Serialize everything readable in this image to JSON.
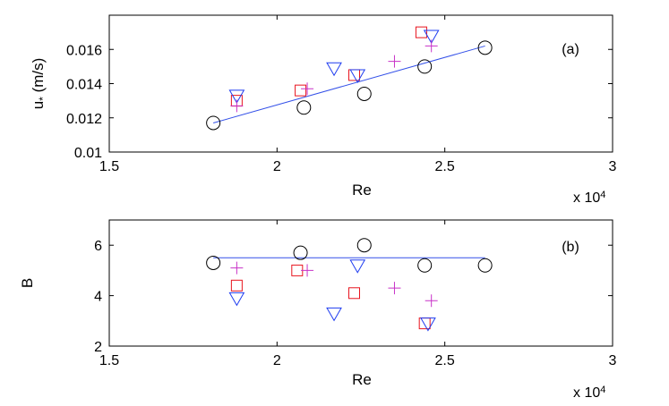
{
  "chart_data": [
    {
      "type": "scatter",
      "panel_label": "(a)",
      "xlabel": "Re",
      "ylabel": "u* (m/s)",
      "ylabel_main": "u",
      "ylabel_sub": "*",
      "ylabel_unit": " (m/s)",
      "xlim": [
        15000,
        30000
      ],
      "ylim": [
        0.01,
        0.018
      ],
      "x_ticks": [
        15000,
        20000,
        25000,
        30000
      ],
      "x_tick_labels": [
        "1.5",
        "2",
        "2.5",
        "3"
      ],
      "y_ticks": [
        0.01,
        0.012,
        0.014,
        0.016
      ],
      "y_tick_labels": [
        "0.01",
        "0.012",
        "0.014",
        "0.016"
      ],
      "x_multiplier_base": "x 10",
      "x_multiplier_exp": "4",
      "grid": false,
      "series": [
        {
          "marker": "circle",
          "color": "#000000",
          "points": [
            [
              18100,
              0.0117
            ],
            [
              20800,
              0.0126
            ],
            [
              22600,
              0.0134
            ],
            [
              24400,
              0.015
            ],
            [
              26200,
              0.0161
            ]
          ]
        },
        {
          "marker": "square",
          "color": "#e8141e",
          "points": [
            [
              18800,
              0.013
            ],
            [
              20700,
              0.0136
            ],
            [
              22300,
              0.0145
            ],
            [
              24300,
              0.017
            ]
          ]
        },
        {
          "marker": "triangle-down",
          "color": "#1e3cf0",
          "points": [
            [
              18800,
              0.0133
            ],
            [
              21700,
              0.0149
            ],
            [
              22400,
              0.0145
            ],
            [
              24600,
              0.0168
            ]
          ]
        },
        {
          "marker": "plus",
          "color": "#c832c8",
          "points": [
            [
              18800,
              0.0127
            ],
            [
              20900,
              0.0137
            ],
            [
              23500,
              0.0153
            ],
            [
              24600,
              0.0162
            ]
          ]
        }
      ],
      "fit_line": {
        "color": "#3350e8",
        "x": [
          18100,
          26200
        ],
        "y": [
          0.0117,
          0.0162
        ]
      }
    },
    {
      "type": "scatter",
      "panel_label": "(b)",
      "xlabel": "Re",
      "ylabel": "B",
      "xlim": [
        15000,
        30000
      ],
      "ylim": [
        2,
        7
      ],
      "x_ticks": [
        15000,
        20000,
        25000,
        30000
      ],
      "x_tick_labels": [
        "1.5",
        "2",
        "2.5",
        "3"
      ],
      "y_ticks": [
        2,
        4,
        6
      ],
      "y_tick_labels": [
        "2",
        "4",
        "6"
      ],
      "x_multiplier_base": "x 10",
      "x_multiplier_exp": "4",
      "grid": false,
      "series": [
        {
          "marker": "circle",
          "color": "#000000",
          "points": [
            [
              18100,
              5.3
            ],
            [
              20700,
              5.7
            ],
            [
              22600,
              6.0
            ],
            [
              24400,
              5.2
            ],
            [
              26200,
              5.2
            ]
          ]
        },
        {
          "marker": "square",
          "color": "#e8141e",
          "points": [
            [
              18800,
              4.4
            ],
            [
              20600,
              5.0
            ],
            [
              22300,
              4.1
            ],
            [
              24400,
              2.9
            ]
          ]
        },
        {
          "marker": "triangle-down",
          "color": "#1e3cf0",
          "points": [
            [
              18800,
              3.9
            ],
            [
              21700,
              3.3
            ],
            [
              22400,
              5.2
            ],
            [
              24500,
              2.9
            ]
          ]
        },
        {
          "marker": "plus",
          "color": "#c832c8",
          "points": [
            [
              18800,
              5.1
            ],
            [
              20900,
              5.0
            ],
            [
              23500,
              4.3
            ],
            [
              24600,
              3.8
            ]
          ]
        }
      ],
      "fit_line": {
        "color": "#3350e8",
        "x": [
          18100,
          26200
        ],
        "y": [
          5.5,
          5.5
        ]
      }
    }
  ]
}
